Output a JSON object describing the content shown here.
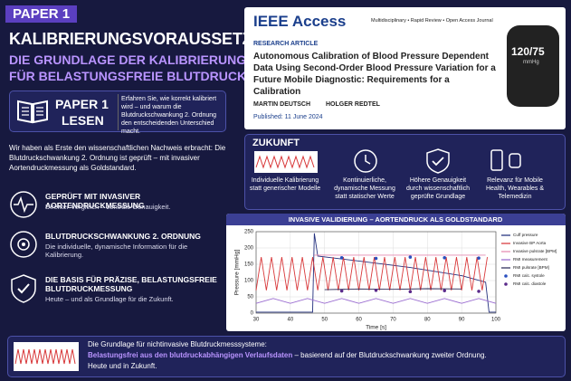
{
  "left": {
    "badge": "PAPER 1",
    "headline": "KALIBRIERUNGSVORAUSSETZUNG:",
    "subline1": "DIE GRUNDLAGE DER KALIBRIERUNG",
    "subline2": "FÜR BELASTUNGSFREIE BLUTDRUCKMESSUNG",
    "read": {
      "title1": "PAPER 1",
      "title2": "LESEN",
      "text": "Erfahren Sie, wie korrekt kalibriert wird – und warum die Blutdruckschwankung 2. Ordnung den entscheidenden Unterschied macht."
    },
    "intro": "Wir haben als Erste den wissenschaftlichen Nachweis erbracht: Die Blutdruckschwankung 2. Ordnung ist geprüft – mit invasiver Aortendruckmessung als Goldstandard.",
    "items": [
      {
        "title": "GEPRÜFT MIT INVASIVER AORTENDRUCKMESSUNG",
        "text": "Direkter Vergleich – zentrale Genauigkeit."
      },
      {
        "title": "BLUTDRUCKSCHWANKUNG 2. ORDNUNG",
        "text": "Die individuelle, dynamische Information für die Kalibrierung."
      },
      {
        "title": "DIE BASIS FÜR PRÄZISE, BELASTUNGSFREIE BLUTDRUCKMESSUNG",
        "text": "Heute – und als Grundlage für die Zukunft."
      }
    ]
  },
  "paper": {
    "journal": "IEEE Access",
    "tagline": "Multidisciplinary • Rapid Review • Open Access Journal",
    "kind": "RESEARCH ARTICLE",
    "title": "Autonomous Calibration of Blood Pressure Dependent Data Using Second-Order Blood Pressure Variation for a Future Mobile Diagnostic: Requirements for a Calibration",
    "author1": "MARTIN DEUTSCH",
    "author2": "HOLGER REDTEL",
    "published": "Published: 11 June 2024",
    "watch_value": "120/75",
    "watch_unit": "mmHg"
  },
  "future": {
    "title": "ZUKUNFT",
    "items": [
      "Individuelle Kalibrierung statt generischer Modelle",
      "Kontinuierliche, dynamische Messung statt statischer Werte",
      "Höhere Genauigkeit durch wissenschaftlich geprüfte Grundlage",
      "Relevanz für Mobile Health, Wearables & Telemedizin"
    ]
  },
  "footer": {
    "line1": "Die Grundlage für nichtinvasive Blutdruckmesssysteme:",
    "bold": "Belastungsfrei aus den blutdruckabhängigen Verlaufsdaten",
    "rest": " – basierend auf der Blutdruckschwankung zweiter Ordnung.",
    "line3": "Heute und in Zukunft."
  },
  "chart_data": {
    "type": "line",
    "title": "INVASIVE VALIDIERUNG – AORTENDRUCK ALS GOLDSTANDARD",
    "x_label": "Time [s]",
    "y_label": "Pressure [mmHg]",
    "xlim": [
      30,
      100
    ],
    "xticks": [
      30,
      40,
      50,
      60,
      70,
      80,
      90,
      100
    ],
    "ylim": [
      0,
      250
    ],
    "yticks": [
      0,
      50,
      100,
      150,
      200,
      250
    ],
    "grid": true,
    "series": [
      {
        "name": "Cuff pressure",
        "color": "#23307e",
        "style": "line",
        "x": [
          30,
          46.5,
          47,
          48,
          60,
          75,
          90,
          97,
          98,
          100
        ],
        "values": [
          3,
          3,
          245,
          175,
          160,
          140,
          115,
          95,
          3,
          3
        ]
      },
      {
        "name": "Invasive BP Aorta",
        "color": "#d8383a",
        "style": "line",
        "x": [
          30,
          31.5,
          33,
          34.5,
          36,
          37.5,
          39,
          40.5,
          42,
          43.5,
          45,
          46.5,
          48,
          49.5,
          51,
          52.5,
          54,
          55.5,
          57,
          58.5,
          60,
          61.5,
          63,
          64.5,
          66,
          67.5,
          69,
          70.5,
          72,
          73.5,
          75,
          76.5,
          78,
          79.5,
          81,
          82.5,
          84,
          85.5,
          87,
          88.5,
          90,
          91.5,
          93,
          94.5,
          96,
          97.5
        ],
        "values": [
          70,
          172,
          70,
          172,
          70,
          172,
          70,
          172,
          70,
          172,
          70,
          172,
          70,
          172,
          70,
          172,
          70,
          172,
          70,
          172,
          70,
          172,
          70,
          172,
          70,
          172,
          70,
          172,
          70,
          172,
          70,
          172,
          70,
          172,
          70,
          172,
          70,
          172,
          70,
          172,
          70,
          172,
          70,
          172,
          70,
          172
        ]
      },
      {
        "name": "Invasive pulsrate [BPM]",
        "color": "#e58bb0",
        "style": "line",
        "x": [
          47,
          97
        ],
        "values": [
          178,
          178
        ]
      },
      {
        "name": "RMI measurement",
        "color": "#9a6cd0",
        "style": "line",
        "x": [
          30,
          35,
          40,
          45,
          50,
          55,
          60,
          65,
          70,
          75,
          80,
          85,
          90,
          95,
          100
        ],
        "values": [
          30,
          45,
          30,
          45,
          30,
          45,
          30,
          45,
          30,
          45,
          30,
          45,
          30,
          45,
          30
        ]
      },
      {
        "name": "RMI pulsrate [BPM]",
        "color": "#2c2c5a",
        "style": "line",
        "x": [
          50,
          60,
          70,
          80,
          90
        ],
        "values": [
          72,
          74,
          73,
          75,
          74
        ]
      },
      {
        "name": "RMI calc. systole",
        "color": "#2a4fc0",
        "style": "marker",
        "x": [
          55,
          65,
          75,
          85,
          95
        ],
        "values": [
          170,
          168,
          172,
          170,
          169
        ]
      },
      {
        "name": "RMI calc. diastole",
        "color": "#5a2a8a",
        "style": "marker",
        "x": [
          55,
          65,
          75,
          85,
          95
        ],
        "values": [
          68,
          70,
          66,
          69,
          67
        ]
      }
    ]
  }
}
